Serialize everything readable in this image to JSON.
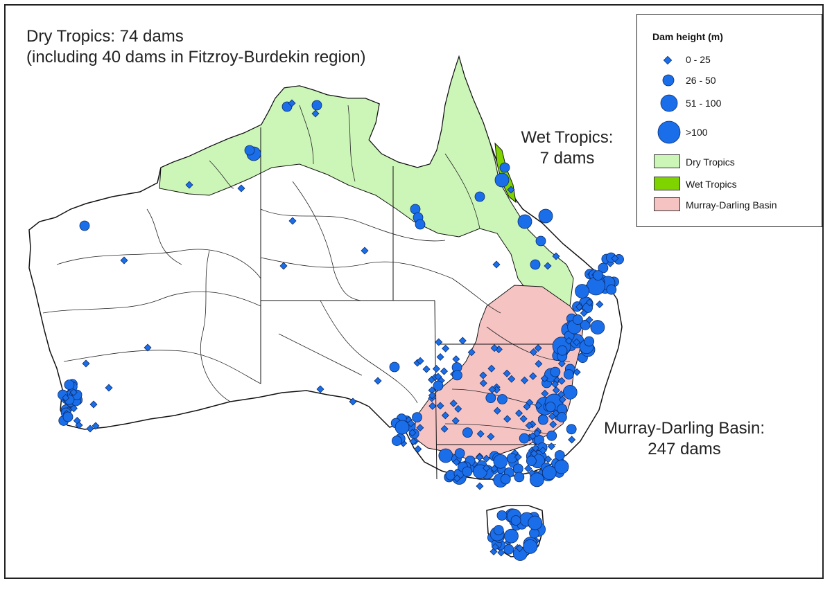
{
  "annotations": {
    "dry_line1": "Dry Tropics: 74 dams",
    "dry_line2": "(including 40 dams in Fitzroy-Burdekin region)",
    "wet_line1": "Wet Tropics:",
    "wet_line2": "7 dams",
    "mdb_line1": "Murray-Darling Basin:",
    "mdb_line2": "247 dams"
  },
  "legend": {
    "title": "Dam height (m)",
    "size_classes": [
      {
        "label": "0 - 25"
      },
      {
        "label": "26 - 50"
      },
      {
        "label": "51 - 100"
      },
      {
        "label": ">100"
      }
    ],
    "regions": [
      {
        "label": "Dry Tropics",
        "color": "#ccf5b8"
      },
      {
        "label": "Wet Tropics",
        "color": "#7fd400"
      },
      {
        "label": "Murray-Darling Basin",
        "color": "#f6c3c3"
      }
    ]
  },
  "colors": {
    "dam_fill": "#1a6eea",
    "dam_stroke": "#0b2c6b",
    "land": "#ffffff",
    "outline": "#111111"
  }
}
